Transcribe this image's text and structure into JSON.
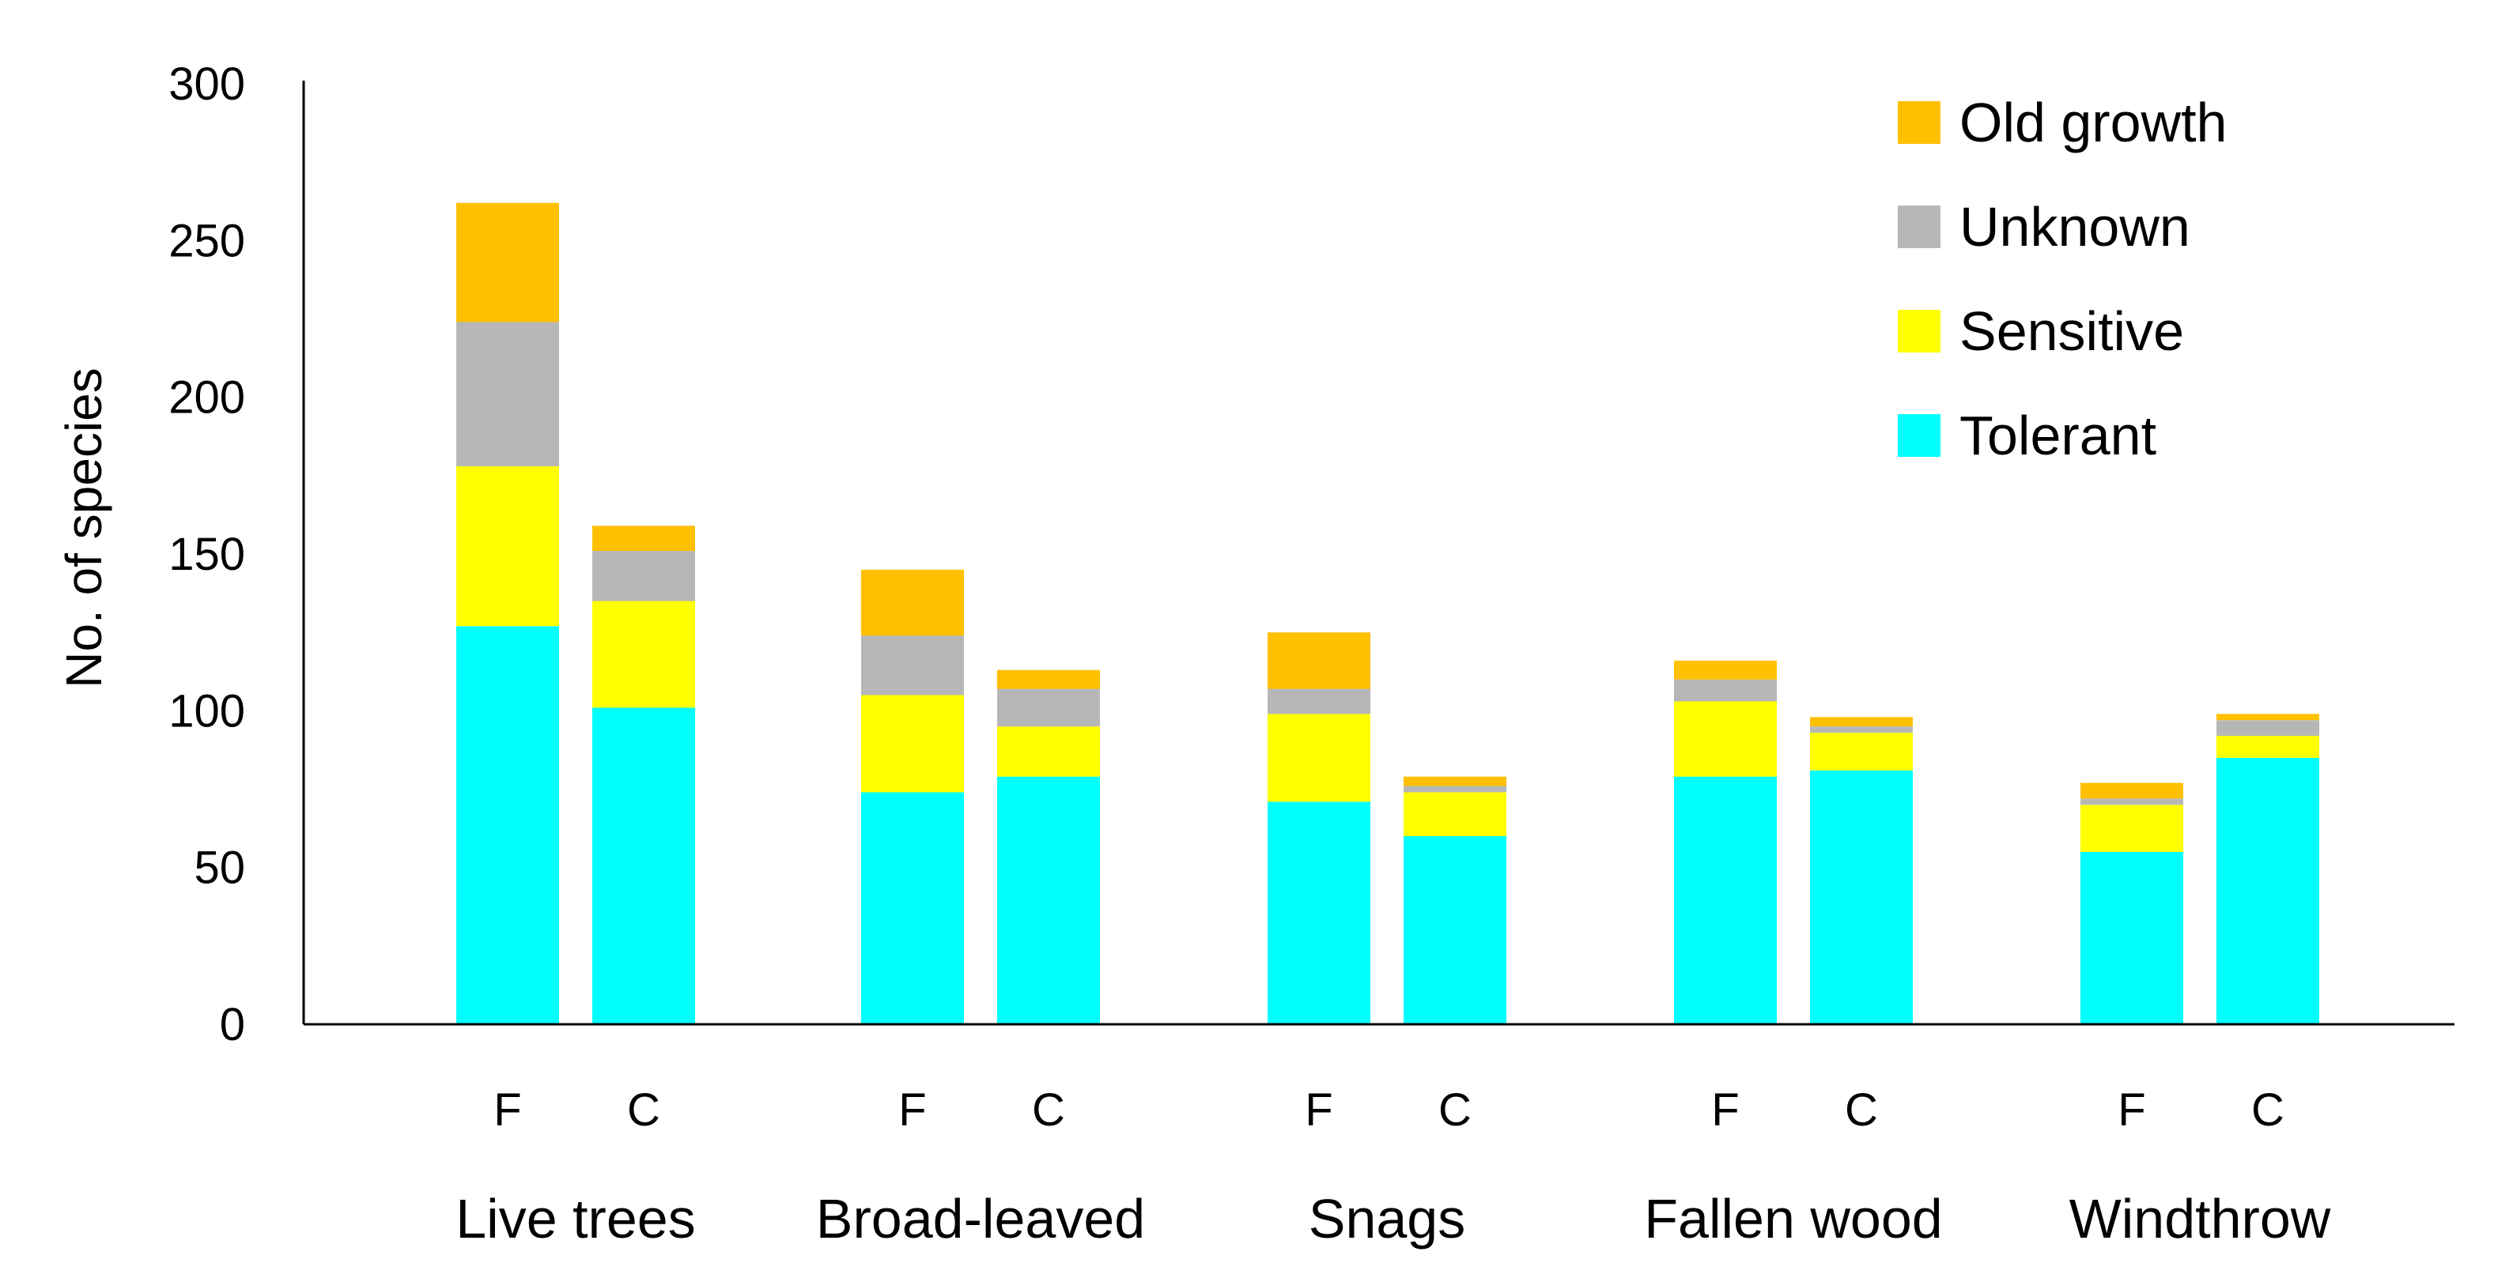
{
  "chart_data": {
    "type": "bar",
    "stacked": true,
    "title": "",
    "xlabel": "",
    "ylabel": "No. of species",
    "ylim": [
      0,
      300
    ],
    "yticks": [
      0,
      50,
      100,
      150,
      200,
      250,
      300
    ],
    "grid": false,
    "legend_position": "top-right",
    "groups": [
      "Live trees",
      "Broad-leaved",
      "Snags",
      "Fallen wood",
      "Windthrow"
    ],
    "subcategories": [
      "F",
      "C"
    ],
    "series": [
      {
        "name": "Tolerant",
        "color": "#00FFFF",
        "values": [
          [
            127,
            101
          ],
          [
            74,
            79
          ],
          [
            71,
            60
          ],
          [
            79,
            81
          ],
          [
            55,
            85
          ]
        ]
      },
      {
        "name": "Sensitive",
        "color": "#FFFF00",
        "values": [
          [
            51,
            34
          ],
          [
            31,
            16
          ],
          [
            28,
            14
          ],
          [
            24,
            12
          ],
          [
            15,
            7
          ]
        ]
      },
      {
        "name": "Unknown",
        "color": "#B7B7B7",
        "values": [
          [
            46,
            16
          ],
          [
            19,
            12
          ],
          [
            8,
            2
          ],
          [
            7,
            2
          ],
          [
            2,
            5
          ]
        ]
      },
      {
        "name": "Old growth",
        "color": "#FFC000",
        "values": [
          [
            38,
            8
          ],
          [
            21,
            6
          ],
          [
            18,
            3
          ],
          [
            6,
            3
          ],
          [
            5,
            2
          ]
        ]
      }
    ],
    "legend_order": [
      "Old growth",
      "Unknown",
      "Sensitive",
      "Tolerant"
    ]
  }
}
